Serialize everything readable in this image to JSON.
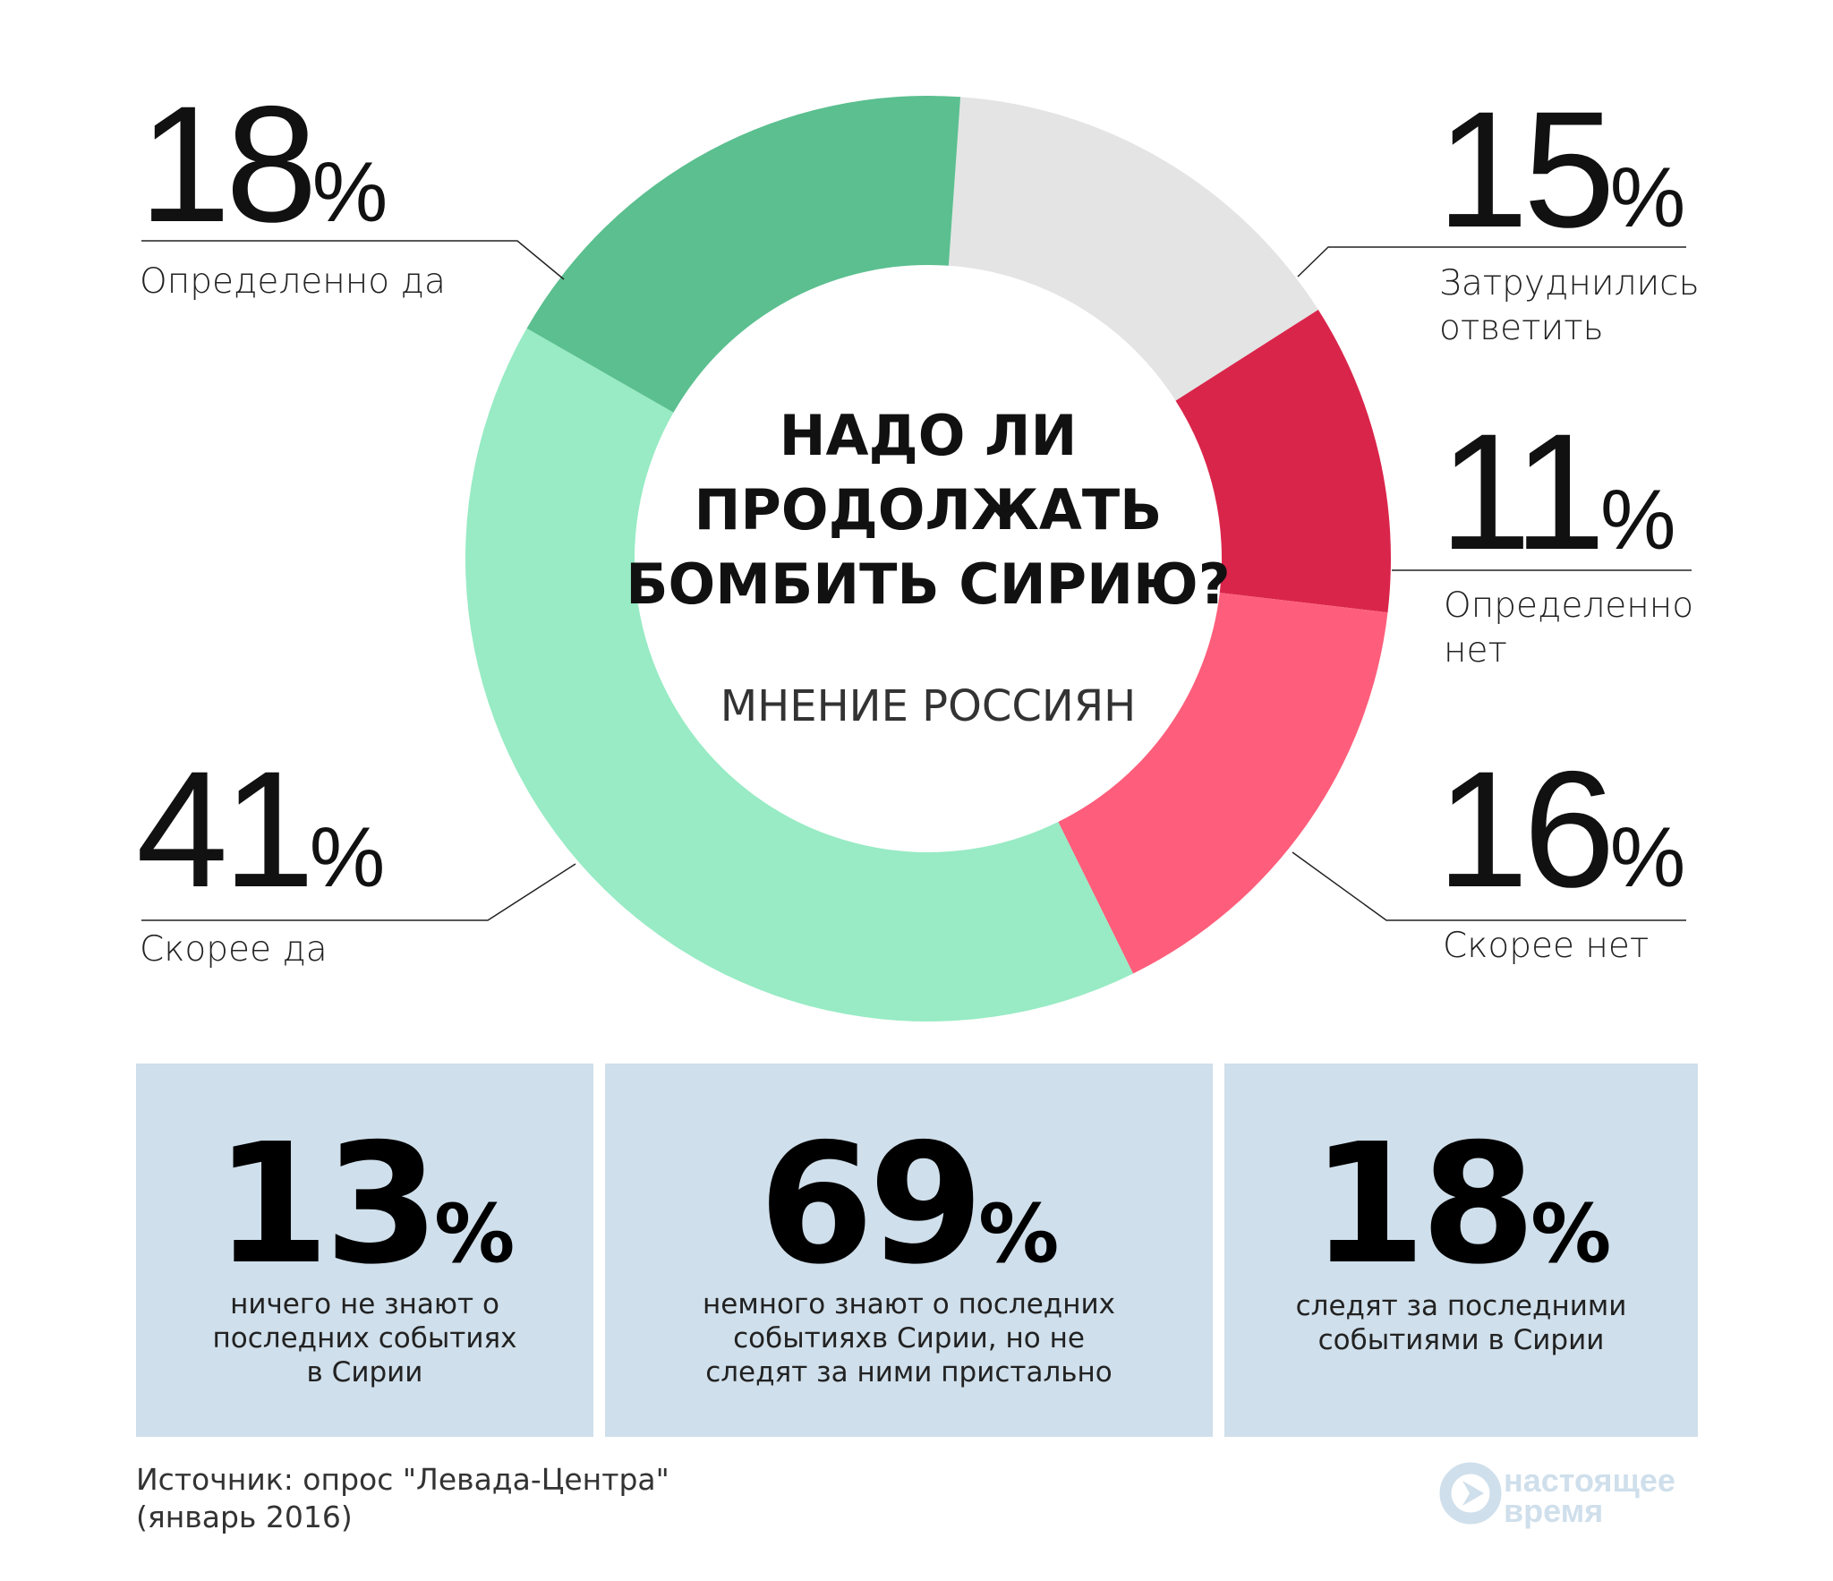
{
  "chart_data": {
    "type": "donut",
    "title": "НАДО ЛИ ПРОДОЛЖАТЬ БОМБИТЬ СИРИЮ?",
    "title_lines": [
      "НАДО ЛИ",
      "ПРОДОЛЖАТЬ",
      "БОМБИТЬ СИРИЮ?"
    ],
    "subtitle": "МНЕНИЕ РОССИЯН",
    "slices": [
      {
        "label": "Затруднились ответить",
        "value": 15,
        "color": "#e4e4e4"
      },
      {
        "label": "Определенно нет",
        "value": 11,
        "color": "#da254b"
      },
      {
        "label": "Скорее нет",
        "value": 16,
        "color": "#fe5e7b"
      },
      {
        "label": "Скорее да",
        "value": 41,
        "color": "#98ebc4"
      },
      {
        "label": "Определенно да",
        "value": 18,
        "color": "#5bbf8f"
      }
    ],
    "unit": "%"
  },
  "labels": {
    "def_yes": {
      "num": "18",
      "pct": "%",
      "text": "Определенно да"
    },
    "hard": {
      "num": "15",
      "pct": "%",
      "line1": "Затруднились",
      "line2": "ответить"
    },
    "def_no": {
      "num": "11",
      "pct": "%",
      "line1": "Определенно",
      "line2": "нет"
    },
    "rather_no": {
      "num": "16",
      "pct": "%",
      "text": "Скорее нет"
    },
    "rather_yes": {
      "num": "41",
      "pct": "%",
      "text": "Скорее да"
    }
  },
  "boxes": [
    {
      "num": "13",
      "pct": "%",
      "lines": [
        "ничего не знают о",
        "последних событиях",
        "в Сирии"
      ]
    },
    {
      "num": "69",
      "pct": "%",
      "lines": [
        "немного знают о последних",
        "событияхв Сирии, но не",
        "следят за ними пристально"
      ]
    },
    {
      "num": "18",
      "pct": "%",
      "lines": [
        "следят за последними",
        "событиями в Сирии"
      ]
    }
  ],
  "box_color": "#cfdfeb",
  "source": {
    "line1": "Источник: опрос \"Левада-Центра\"",
    "line2": "(январь 2016)"
  },
  "logo": {
    "text1": "настоящее",
    "text2": "время",
    "color": "#cfdfeb"
  }
}
